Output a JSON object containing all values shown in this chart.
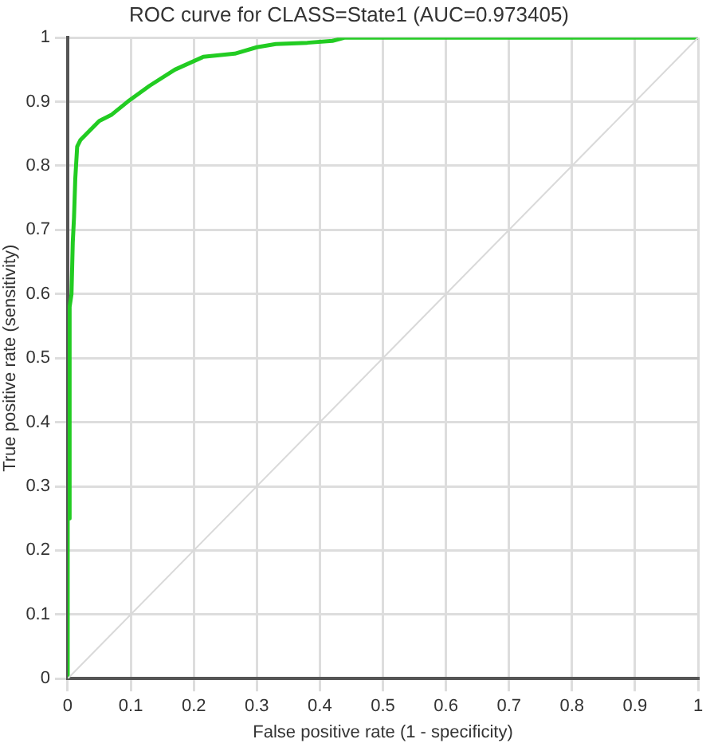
{
  "chart_data": {
    "type": "line",
    "title": "ROC curve for CLASS=State1 (AUC=0.973405)",
    "xlabel": "False positive rate (1 - specificity)",
    "ylabel": "True positive rate (sensitivity)",
    "xlim": [
      0,
      1
    ],
    "ylim": [
      0,
      1
    ],
    "xticks": [
      0,
      0.1,
      0.2,
      0.3,
      0.4,
      0.5,
      0.6,
      0.7,
      0.8,
      0.9,
      1
    ],
    "yticks": [
      0,
      0.1,
      0.2,
      0.3,
      0.4,
      0.5,
      0.6,
      0.7,
      0.8,
      0.9,
      1
    ],
    "grid": true,
    "marker": "none",
    "line_style": "solid",
    "series": [
      {
        "color": "#d9d9d9",
        "x": [
          0,
          1
        ],
        "values": [
          0,
          1
        ]
      },
      {
        "color": "#22cc22",
        "x": [
          0,
          0,
          0.003,
          0.003,
          0.006,
          0.008,
          0.01,
          0.012,
          0.015,
          0.02,
          0.03,
          0.05,
          0.07,
          0.095,
          0.13,
          0.17,
          0.215,
          0.265,
          0.3,
          0.33,
          0.38,
          0.42,
          0.44,
          1
        ],
        "values": [
          0,
          0.25,
          0.25,
          0.58,
          0.6,
          0.68,
          0.72,
          0.78,
          0.83,
          0.84,
          0.85,
          0.87,
          0.88,
          0.9,
          0.925,
          0.95,
          0.97,
          0.975,
          0.985,
          0.99,
          0.992,
          0.995,
          1,
          1
        ]
      }
    ]
  }
}
